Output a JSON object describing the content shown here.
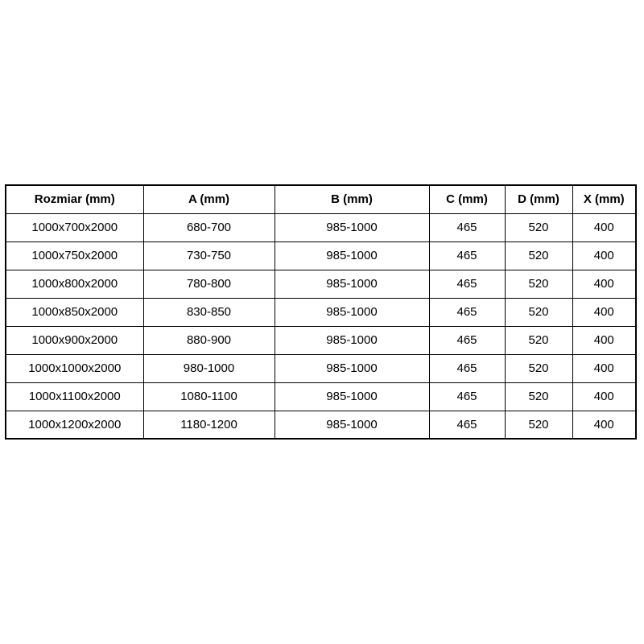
{
  "colors": {
    "page_background": "#ffffff",
    "table_border": "#000000",
    "text": "#000000",
    "cell_background": "#ffffff"
  },
  "table": {
    "headers": [
      "Rozmiar (mm)",
      "A (mm)",
      "B (mm)",
      "C (mm)",
      "D (mm)",
      "X (mm)"
    ],
    "rows": [
      [
        "1000x700x2000",
        "680-700",
        "985-1000",
        "465",
        "520",
        "400"
      ],
      [
        "1000x750x2000",
        "730-750",
        "985-1000",
        "465",
        "520",
        "400"
      ],
      [
        "1000x800x2000",
        "780-800",
        "985-1000",
        "465",
        "520",
        "400"
      ],
      [
        "1000x850x2000",
        "830-850",
        "985-1000",
        "465",
        "520",
        "400"
      ],
      [
        "1000x900x2000",
        "880-900",
        "985-1000",
        "465",
        "520",
        "400"
      ],
      [
        "1000x1000x2000",
        "980-1000",
        "985-1000",
        "465",
        "520",
        "400"
      ],
      [
        "1000x1100x2000",
        "1080-1100",
        "985-1000",
        "465",
        "520",
        "400"
      ],
      [
        "1000x1200x2000",
        "1180-1200",
        "985-1000",
        "465",
        "520",
        "400"
      ]
    ]
  }
}
